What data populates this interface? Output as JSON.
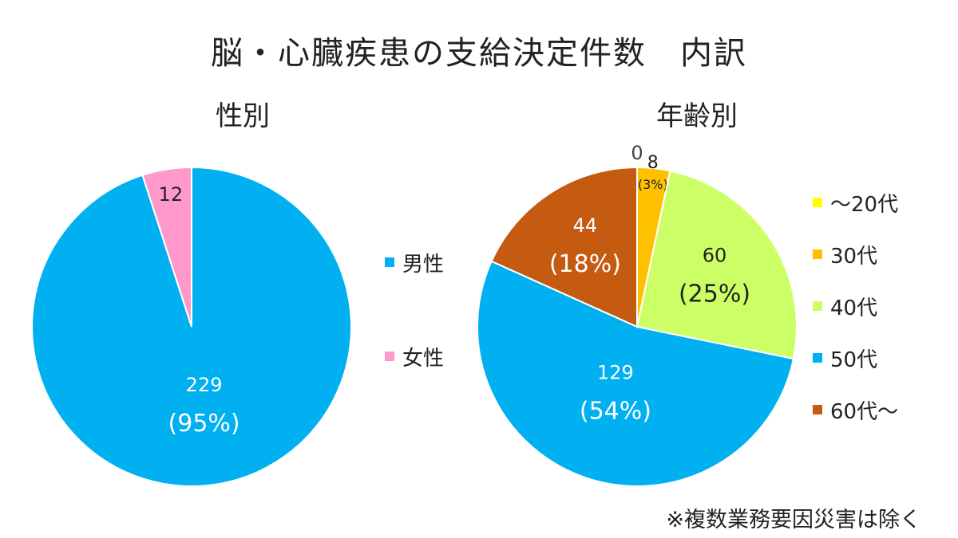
{
  "title": "脳・心臓疾患の支給決定件数　内訳",
  "footnote": "※複数業務要因災害は除く",
  "colors": {
    "male": "#00b0f0",
    "female": "#ff99cc",
    "age_20": "#ffff00",
    "age_30": "#ffc000",
    "age_40": "#ccff66",
    "age_50": "#00b0f0",
    "age_60": "#c55a11"
  },
  "chart_data": [
    {
      "type": "pie",
      "title": "性別",
      "categories": [
        "男性",
        "女性"
      ],
      "values": [
        229,
        12
      ],
      "value_labels": [
        "229",
        "12"
      ],
      "percent_labels": [
        "(95%)",
        ""
      ],
      "colors": [
        "#00b0f0",
        "#ff99cc"
      ],
      "legend_position": "right"
    },
    {
      "type": "pie",
      "title": "年齢別",
      "categories": [
        "～20代",
        "30代",
        "40代",
        "50代",
        "60代～"
      ],
      "values": [
        0,
        8,
        60,
        129,
        44
      ],
      "value_labels": [
        "0",
        "8",
        "60",
        "129",
        "44"
      ],
      "percent_labels": [
        "",
        "(3%)",
        "(25%)",
        "(54%)",
        "(18%)"
      ],
      "colors": [
        "#ffff00",
        "#ffc000",
        "#ccff66",
        "#00b0f0",
        "#c55a11"
      ],
      "legend_position": "right"
    }
  ]
}
